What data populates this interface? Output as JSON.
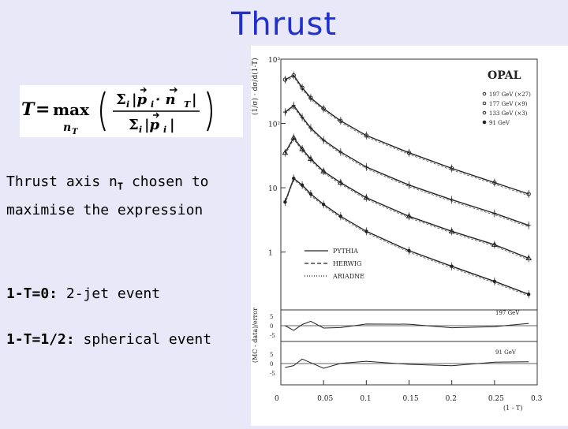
{
  "slide": {
    "title": "Thrust",
    "formula": {
      "lhs": "T",
      "max": "max",
      "max_sub": "n",
      "max_sub_sub": "T",
      "numerator": "Σ",
      "numerator_sub": "i",
      "numerator_body": "|p",
      "numerator_sub2": "i",
      "numerator_dot": "· n",
      "numerator_sub3": "T",
      "numerator_close": "|",
      "denominator": "Σ",
      "denominator_sub": "i",
      "denominator_body": "|p",
      "denominator_sub2": "i",
      "denominator_close": "|"
    },
    "axis_line1_a": "Thrust axis n",
    "axis_line1_sub": "T",
    "axis_line1_b": " chosen to",
    "axis_line2": "maximise the expression",
    "line3_bold": "1-T=0:",
    "line3_rest": " 2-jet event",
    "line4_bold": "1-T=1/2:",
    "line4_rest": " spherical event"
  },
  "chart_data": {
    "type": "line",
    "title": "OPAL",
    "xlabel": "(1 - T)",
    "ylabel": "(1/σ) · dσ/d(1-T)",
    "xlim": [
      0,
      0.3
    ],
    "x_ticks": [
      "0",
      "0.05",
      "0.1",
      "0.15",
      "0.2",
      "0.25",
      "0.3"
    ],
    "y_ticks": [
      "10³",
      "10²",
      "10",
      "1"
    ],
    "legend": [
      "197 GeV (×27)",
      "177 GeV (×9)",
      "133 GeV (×3)",
      "91 GeV"
    ],
    "legend_generators": [
      "PYTHIA",
      "HERWIG",
      "ARIADNE"
    ],
    "ratio_panel_ylabel": "(MC - data)/error",
    "ratio_panels": [
      {
        "label": "197 GeV",
        "ticks": [
          "5",
          "0",
          "-5"
        ]
      },
      {
        "label": "91 GeV",
        "ticks": [
          "5",
          "0",
          "-5"
        ]
      }
    ],
    "series": [
      {
        "name": "197 GeV (×27)",
        "x": [
          0.005,
          0.015,
          0.025,
          0.035,
          0.05,
          0.07,
          0.1,
          0.15,
          0.2,
          0.25,
          0.29
        ],
        "y": [
          480,
          560,
          360,
          250,
          170,
          110,
          65,
          35,
          20,
          12,
          8
        ]
      },
      {
        "name": "177 GeV (×9)",
        "x": [
          0.005,
          0.015,
          0.025,
          0.035,
          0.05,
          0.07,
          0.1,
          0.15,
          0.2,
          0.25,
          0.29
        ],
        "y": [
          150,
          190,
          125,
          85,
          55,
          36,
          21,
          11,
          6.5,
          4,
          2.6
        ]
      },
      {
        "name": "133 GeV (×3)",
        "x": [
          0.005,
          0.015,
          0.025,
          0.035,
          0.05,
          0.07,
          0.1,
          0.15,
          0.2,
          0.25,
          0.29
        ],
        "y": [
          35,
          60,
          40,
          28,
          18,
          12,
          7,
          3.6,
          2.1,
          1.3,
          0.8
        ]
      },
      {
        "name": "91 GeV",
        "x": [
          0.005,
          0.015,
          0.025,
          0.035,
          0.05,
          0.07,
          0.1,
          0.15,
          0.2,
          0.25,
          0.29
        ],
        "y": [
          6,
          14,
          11,
          8,
          5.5,
          3.6,
          2.1,
          1.05,
          0.6,
          0.35,
          0.22
        ]
      }
    ],
    "grid": false,
    "legend_position": "top-right"
  }
}
